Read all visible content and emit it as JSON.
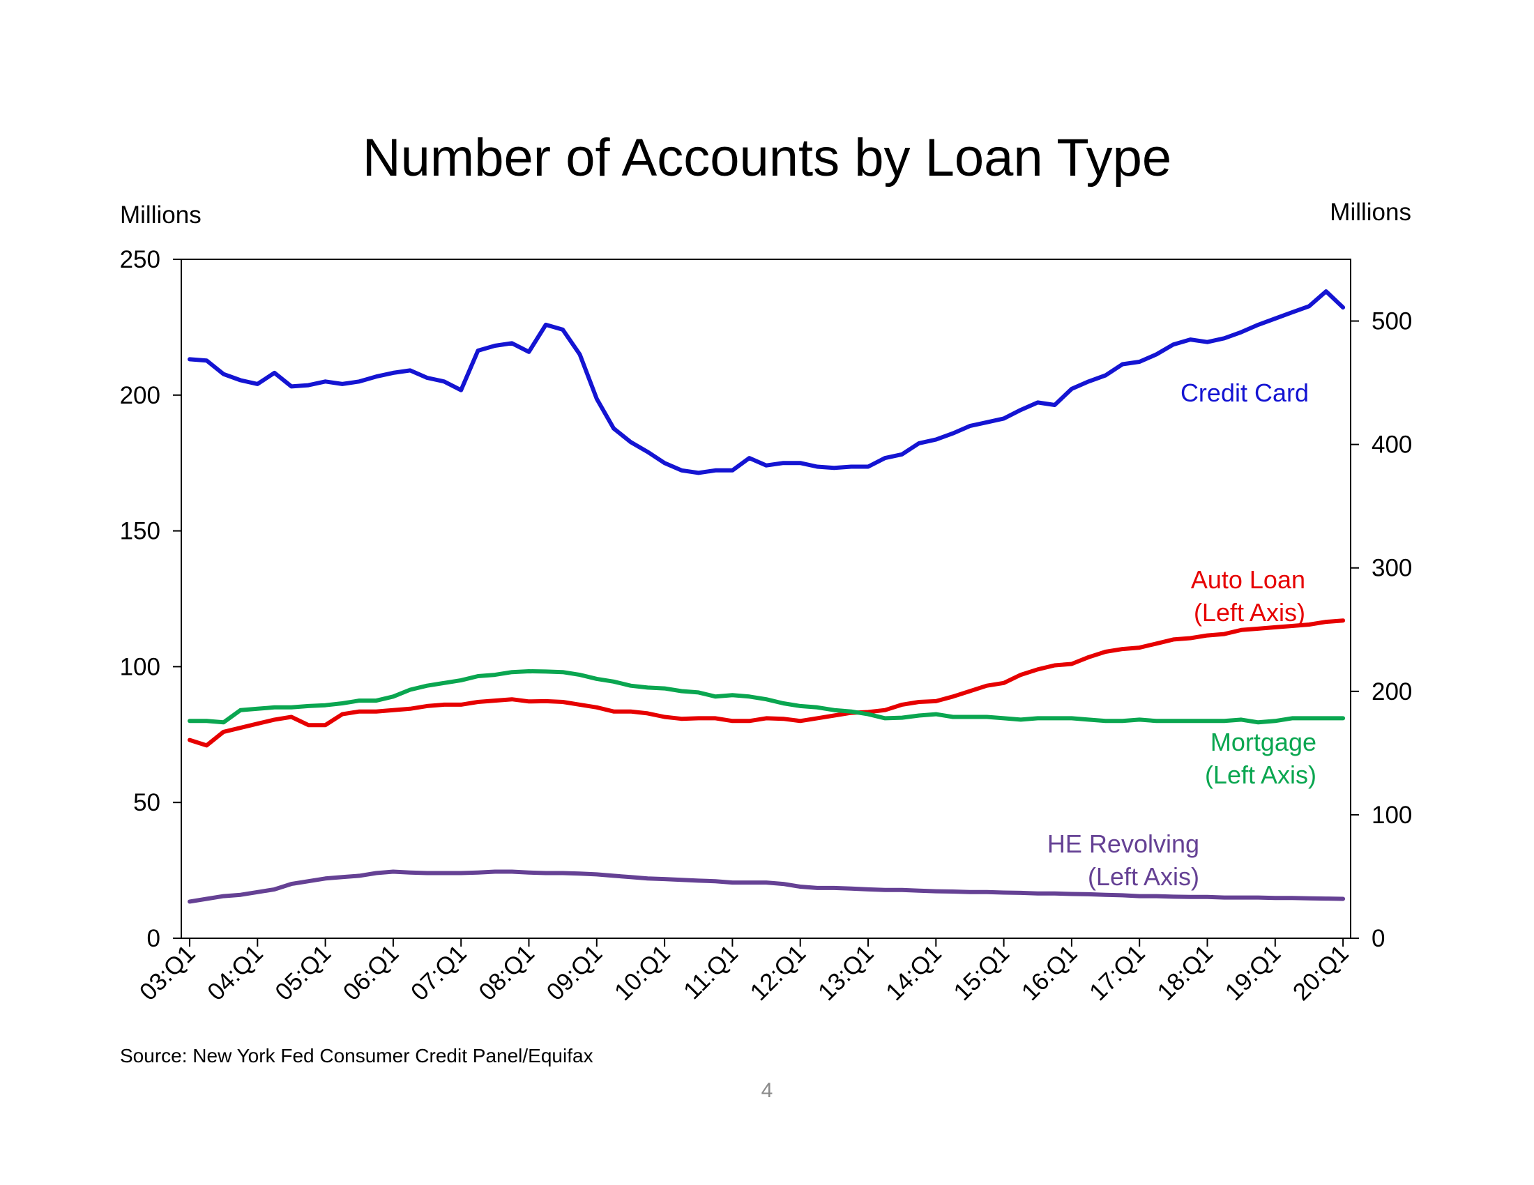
{
  "page": {
    "number": "4"
  },
  "chart_data": {
    "type": "line",
    "title": "Number of Accounts by Loan Type",
    "source": "Source: New York Fed Consumer Credit Panel/Equifax",
    "left_axis": {
      "unit": "Millions",
      "range": [
        0,
        250
      ],
      "ticks": [
        "0",
        "50",
        "100",
        "150",
        "200",
        "250"
      ]
    },
    "right_axis": {
      "unit": "Millions",
      "range": [
        0,
        550
      ],
      "ticks": [
        "0",
        "100",
        "200",
        "300",
        "400",
        "500"
      ]
    },
    "x_ticks": [
      "03:Q1",
      "04:Q1",
      "05:Q1",
      "06:Q1",
      "07:Q1",
      "08:Q1",
      "09:Q1",
      "10:Q1",
      "11:Q1",
      "12:Q1",
      "13:Q1",
      "14:Q1",
      "15:Q1",
      "16:Q1",
      "17:Q1",
      "18:Q1",
      "19:Q1",
      "20:Q1"
    ],
    "x_start_year": 2003,
    "grid": false,
    "legend": "inline labels",
    "series": [
      {
        "name": "Credit Card",
        "label_lines": [
          "Credit Card"
        ],
        "axis": "right",
        "color": "#1414d2",
        "values": [
          469,
          468,
          457,
          452,
          449,
          458,
          447,
          448,
          451,
          449,
          451,
          455,
          458,
          460,
          454,
          451,
          444,
          476,
          480,
          482,
          475,
          497,
          493,
          473,
          437,
          413,
          402,
          394,
          385,
          379,
          377,
          379,
          379,
          389,
          383,
          385,
          385,
          382,
          381,
          382,
          382,
          389,
          392,
          401,
          404,
          409,
          415,
          418,
          421,
          428,
          434,
          432,
          445,
          451,
          456,
          465,
          467,
          473,
          481,
          485,
          483,
          486,
          491,
          497,
          502,
          507,
          512,
          524,
          511
        ]
      },
      {
        "name": "Auto Loan",
        "label_lines": [
          "Auto Loan",
          "(Left Axis)"
        ],
        "axis": "left",
        "color": "#e60000",
        "values": [
          73,
          71,
          76,
          77.5,
          79,
          80.5,
          81.5,
          78.5,
          78.5,
          82.5,
          83.5,
          83.5,
          84,
          84.5,
          85.5,
          86,
          86,
          87,
          87.5,
          88,
          87.2,
          87.3,
          87,
          86,
          85,
          83.5,
          83.5,
          82.8,
          81.5,
          80.8,
          81,
          81,
          80,
          80,
          81,
          80.8,
          80,
          81,
          82,
          83,
          83.3,
          84,
          86,
          87,
          87.3,
          89,
          91,
          93,
          94,
          97,
          99,
          100.5,
          101,
          103.5,
          105.5,
          106.5,
          107,
          108.5,
          110,
          110.5,
          111.5,
          112,
          113.5,
          114,
          114.5,
          115,
          115.5,
          116.5,
          117
        ]
      },
      {
        "name": "Mortgage",
        "label_lines": [
          "Mortgage",
          "(Left Axis)"
        ],
        "axis": "left",
        "color": "#0aa650",
        "values": [
          80,
          80,
          79.5,
          84,
          84.5,
          85,
          85,
          85.5,
          85.8,
          86.5,
          87.5,
          87.5,
          89,
          91.5,
          93,
          94,
          95,
          96.5,
          97,
          98,
          98.3,
          98.2,
          98,
          97,
          95.5,
          94.5,
          93,
          92.3,
          92,
          91,
          90.5,
          89,
          89.5,
          89,
          88,
          86.5,
          85.5,
          85,
          84,
          83.5,
          82.5,
          81,
          81.2,
          82,
          82.5,
          81.5,
          81.5,
          81.5,
          81,
          80.5,
          81,
          81,
          81,
          80.5,
          80,
          80,
          80.5,
          80,
          80,
          80,
          80,
          80,
          80.5,
          79.5,
          80,
          81,
          81,
          81,
          81
        ]
      },
      {
        "name": "HE Revolving",
        "label_lines": [
          "HE Revolving",
          "(Left Axis)"
        ],
        "axis": "left",
        "color": "#654194",
        "values": [
          13.5,
          14.5,
          15.5,
          16,
          17,
          18,
          20,
          21,
          22,
          22.5,
          23,
          24,
          24.5,
          24.2,
          24,
          24,
          24,
          24.2,
          24.5,
          24.5,
          24.2,
          24,
          24,
          23.8,
          23.5,
          23,
          22.5,
          22,
          21.8,
          21.5,
          21.2,
          21,
          20.5,
          20.5,
          20.5,
          20,
          19,
          18.5,
          18.5,
          18.3,
          18,
          17.8,
          17.8,
          17.5,
          17.3,
          17.2,
          17,
          17,
          16.8,
          16.7,
          16.5,
          16.5,
          16.3,
          16.2,
          16,
          15.8,
          15.5,
          15.5,
          15.3,
          15.2,
          15.2,
          15,
          15,
          15,
          14.8,
          14.8,
          14.7,
          14.6,
          14.5
        ]
      }
    ]
  }
}
